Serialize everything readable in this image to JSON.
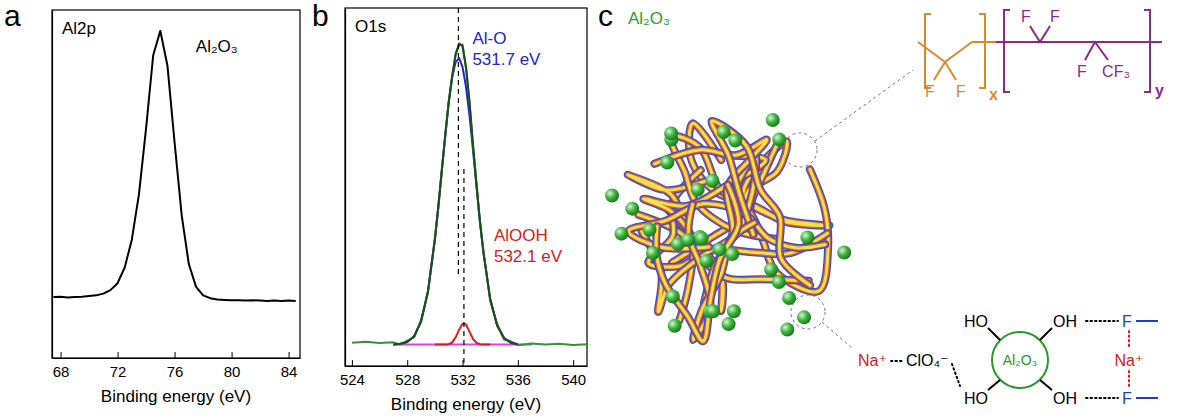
{
  "chart_data": [
    {
      "type": "line",
      "panel_label": "a",
      "title": "Al2p",
      "xlabel": "Binding energy (eV)",
      "xlim": [
        67.4,
        84.8
      ],
      "xticks": [
        68,
        72,
        76,
        80,
        84
      ],
      "ylim": [
        0,
        100
      ],
      "yticks": [],
      "tick_labels": "x",
      "x": [
        67.5,
        68,
        68.5,
        69,
        69.5,
        70,
        70.5,
        71,
        71.5,
        72,
        72.5,
        73,
        73.5,
        74,
        74.5,
        75,
        75.5,
        76,
        76.5,
        77,
        77.5,
        78,
        78.5,
        79,
        79.5,
        80,
        80.5,
        81,
        81.5,
        82,
        82.5,
        83,
        83.5,
        84,
        84.5
      ],
      "series": [
        {
          "color": "#000000",
          "values": [
            17.5,
            17.6,
            17.4,
            17.5,
            17.6,
            17.8,
            18,
            18.5,
            19.5,
            21.5,
            26,
            34,
            47,
            66,
            87,
            94,
            84,
            62,
            41,
            27,
            20.5,
            18,
            17.2,
            16.8,
            16.7,
            16.6,
            16.6,
            16.5,
            16.6,
            16.5,
            16.4,
            16.5,
            16.4,
            16.5,
            16.4
          ]
        }
      ],
      "annotations": [
        {
          "text": "Al₂O₃"
        }
      ]
    },
    {
      "type": "line",
      "panel_label": "b",
      "title": "O1s",
      "xlabel": "Binding energy (eV)",
      "xlim": [
        523.5,
        541
      ],
      "xticks": [
        524,
        528,
        532,
        536,
        540
      ],
      "ylim": [
        0,
        100
      ],
      "yticks": [],
      "tick_labels": "x",
      "x": [
        524,
        525,
        526,
        527,
        527.5,
        528,
        528.5,
        529,
        529.5,
        530,
        530.25,
        530.5,
        530.75,
        531,
        531.25,
        531.5,
        531.75,
        532,
        532.25,
        532.5,
        532.75,
        533,
        533.25,
        533.5,
        534,
        534.5,
        535,
        535.5,
        536,
        537,
        538,
        539,
        540,
        541
      ],
      "series": [
        {
          "color": "#e040e0",
          "values": [
            null,
            null,
            null,
            6,
            6,
            6,
            6,
            6,
            6,
            6,
            6,
            6,
            6,
            6,
            6,
            6,
            6,
            6,
            6,
            6,
            6,
            6,
            6,
            6,
            6,
            6,
            6,
            6,
            6,
            6,
            null,
            null,
            null,
            null
          ]
        },
        {
          "color": "#2424c8",
          "values": [
            null,
            null,
            null,
            6.0,
            6.2,
            6.7,
            8.3,
            12.4,
            20.9,
            35.3,
            44.6,
            54.5,
            64.5,
            73.5,
            80.6,
            84.9,
            86.0,
            83.5,
            78.0,
            70.1,
            60.6,
            50.5,
            40.7,
            32.0,
            18.7,
            11.3,
            7.8,
            6.5,
            6.1,
            null,
            null,
            null,
            null,
            null
          ]
        },
        {
          "color": "#3a8f3a",
          "values": [
            6.5,
            6.8,
            6.4,
            6.6,
            6.0,
            7.1,
            8.0,
            12.9,
            20.4,
            35.8,
            44.1,
            55.0,
            64.0,
            74.1,
            80.7,
            87.4,
            89.6,
            89.8,
            83.1,
            74.2,
            61.7,
            51.5,
            40.3,
            32.5,
            18.2,
            11.8,
            7.4,
            6.9,
            5.8,
            6.3,
            6.0,
            6.2,
            5.9,
            6.1
          ]
        },
        {
          "color": "#1c4d1c",
          "values": [
            null,
            null,
            null,
            6.0,
            6.2,
            6.7,
            8.3,
            12.4,
            20.9,
            35.3,
            44.6,
            54.5,
            64.5,
            73.6,
            81.2,
            86.9,
            90.1,
            89.3,
            83.6,
            73.7,
            62.2,
            51.0,
            40.8,
            32.0,
            18.7,
            11.3,
            7.8,
            6.5,
            6.1,
            null,
            null,
            null,
            null,
            null
          ]
        },
        {
          "color": "#d42020",
          "values": [
            null,
            null,
            null,
            null,
            null,
            null,
            null,
            null,
            null,
            6.0,
            6.0,
            6.0,
            6.0,
            6.1,
            6.6,
            8.0,
            10.1,
            11.8,
            11.6,
            9.6,
            7.6,
            6.5,
            6.1,
            6.0,
            6.0,
            null,
            null,
            null,
            null,
            null,
            null,
            null,
            null,
            null
          ]
        }
      ],
      "annotations": [
        {
          "text": "Al-O",
          "value": 531.7,
          "value_label": "531.7 eV",
          "color": "#2424c8"
        },
        {
          "text": "AlOOH",
          "value": 532.1,
          "value_label": "532.1 eV",
          "color": "#d42020"
        }
      ]
    }
  ],
  "diagram": {
    "panel_label": "c",
    "filler_label": "Al₂O₃",
    "polymer": {
      "segments": [
        {
          "atoms": [
            "F",
            "F"
          ],
          "subscript": "x",
          "color": "#d9892b"
        },
        {
          "atoms": [
            "F",
            "F",
            "F",
            "CF₃"
          ],
          "subscript": "y",
          "color": "#8b2a8b"
        }
      ]
    },
    "interaction": {
      "cation_left": "Na⁺",
      "anion": "ClO₄⁻",
      "hydroxyls": [
        "HO",
        "HO",
        "OH",
        "OH"
      ],
      "particle": "Al₂O₃",
      "fluorines": [
        "F",
        "F"
      ],
      "cation_right": "Na⁺"
    }
  }
}
